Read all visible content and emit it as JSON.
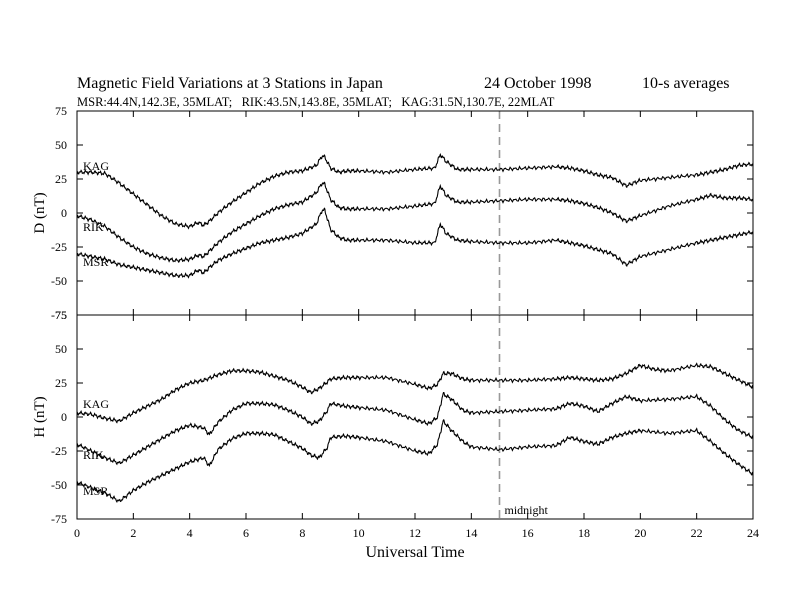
{
  "title": {
    "main": "Magnetic Field Variations at 3 Stations in Japan",
    "date": "24 October 1998",
    "averaging": "10-s averages",
    "subtitle": "MSR:44.4N,142.3E, 35MLAT;   RIK:43.5N,143.8E, 35MLAT;   KAG:31.5N,130.7E, 22MLAT"
  },
  "annotations": {
    "midnight": "midnight",
    "midnight_ut": 15
  },
  "chart_data": [
    {
      "type": "line",
      "panel": "D",
      "ylabel": "D (nT)",
      "ylim": [
        -75,
        75
      ],
      "yticks": [
        -75,
        -50,
        -25,
        0,
        25,
        50,
        75
      ],
      "xlim": [
        0,
        24
      ],
      "line_color": "#000000",
      "series": [
        {
          "name": "KAG",
          "x": [
            0,
            0.5,
            1,
            1.5,
            2,
            2.5,
            3,
            3.5,
            4,
            4.3,
            4.5,
            4.7,
            5,
            5.5,
            6,
            6.5,
            7,
            7.5,
            8,
            8.5,
            8.7,
            8.8,
            9,
            9.3,
            9.6,
            10,
            11,
            12,
            12.7,
            12.9,
            13.1,
            13.5,
            14,
            15,
            16,
            17,
            17.5,
            18,
            18.5,
            19,
            19.5,
            20,
            21,
            22,
            22.5,
            23,
            23.5,
            24
          ],
          "y": [
            30,
            30,
            29,
            22,
            14,
            6,
            -2,
            -8,
            -10,
            -7,
            -9,
            -6,
            0,
            8,
            15,
            22,
            27,
            30,
            31,
            35,
            42,
            41,
            33,
            30,
            31,
            31,
            30,
            32,
            33,
            43,
            38,
            32,
            32,
            32,
            33,
            34,
            33,
            31,
            28,
            26,
            20,
            24,
            26,
            28,
            30,
            32,
            35,
            36
          ]
        },
        {
          "name": "RIK",
          "x": [
            0,
            0.5,
            1,
            1.5,
            2,
            2.5,
            3,
            3.5,
            4,
            4.3,
            4.5,
            4.7,
            5,
            5.5,
            6,
            6.5,
            7,
            7.5,
            8,
            8.5,
            8.7,
            8.8,
            9,
            9.3,
            9.6,
            10,
            11,
            12,
            12.7,
            12.9,
            13.1,
            13.5,
            14,
            15,
            16,
            17,
            17.5,
            18,
            18.5,
            19,
            19.5,
            20,
            21,
            22,
            22.5,
            23,
            23.5,
            24
          ],
          "y": [
            -2,
            -5,
            -10,
            -18,
            -25,
            -30,
            -33,
            -35,
            -34,
            -31,
            -32,
            -28,
            -22,
            -14,
            -8,
            -2,
            3,
            6,
            8,
            15,
            22,
            21,
            10,
            4,
            3,
            3,
            3,
            5,
            7,
            20,
            13,
            8,
            8,
            9,
            10,
            10,
            9,
            7,
            4,
            0,
            -6,
            -2,
            5,
            10,
            13,
            11,
            11,
            10
          ]
        },
        {
          "name": "MSR",
          "x": [
            0,
            0.5,
            1,
            1.5,
            2,
            2.5,
            3,
            3.5,
            4,
            4.3,
            4.5,
            4.7,
            5,
            5.5,
            6,
            6.5,
            7,
            7.5,
            8,
            8.5,
            8.7,
            8.8,
            9,
            9.3,
            9.6,
            10,
            11,
            12,
            12.7,
            12.9,
            13.1,
            13.5,
            14,
            15,
            16,
            17,
            17.5,
            18,
            18.5,
            19,
            19.5,
            20,
            21,
            22,
            22.5,
            23,
            23.5,
            24
          ],
          "y": [
            -30,
            -32,
            -34,
            -38,
            -40,
            -42,
            -44,
            -46,
            -46,
            -42,
            -44,
            -40,
            -35,
            -30,
            -26,
            -22,
            -20,
            -18,
            -15,
            -8,
            2,
            2,
            -12,
            -18,
            -20,
            -20,
            -20,
            -22,
            -22,
            -8,
            -15,
            -20,
            -21,
            -22,
            -22,
            -20,
            -22,
            -24,
            -27,
            -30,
            -38,
            -32,
            -27,
            -22,
            -20,
            -18,
            -16,
            -14
          ]
        }
      ]
    },
    {
      "type": "line",
      "panel": "H",
      "ylabel": "H (nT)",
      "xlabel": "Universal Time",
      "ylim": [
        -75,
        75
      ],
      "yticks": [
        -75,
        -50,
        -25,
        0,
        25,
        50,
        75
      ],
      "xlim": [
        0,
        24
      ],
      "xticks": [
        0,
        2,
        4,
        6,
        8,
        10,
        12,
        14,
        16,
        18,
        20,
        22,
        24
      ],
      "line_color": "#000000",
      "series": [
        {
          "name": "KAG",
          "x": [
            0,
            0.5,
            1,
            1.5,
            2,
            2.5,
            3,
            3.5,
            4,
            4.5,
            5,
            5.5,
            6,
            6.5,
            7,
            7.5,
            8,
            8.3,
            8.6,
            8.9,
            9,
            9.5,
            10,
            11,
            12,
            12.5,
            12.8,
            13,
            13.3,
            13.7,
            14,
            15,
            16,
            17,
            17.5,
            18,
            18.5,
            19,
            19.5,
            20,
            20.5,
            21,
            22,
            22.5,
            23,
            23.5,
            24
          ],
          "y": [
            3,
            2,
            -1,
            -3,
            3,
            8,
            13,
            20,
            25,
            27,
            31,
            34,
            34,
            33,
            30,
            27,
            22,
            18,
            21,
            26,
            28,
            29,
            29,
            29,
            24,
            21,
            24,
            32,
            32,
            28,
            27,
            27,
            27,
            28,
            29,
            28,
            27,
            28,
            32,
            38,
            35,
            34,
            38,
            37,
            32,
            27,
            22
          ]
        },
        {
          "name": "RIK",
          "x": [
            0,
            0.5,
            1,
            1.5,
            2,
            2.5,
            3,
            3.5,
            4,
            4.5,
            4.7,
            5,
            5.5,
            6,
            6.5,
            7,
            7.5,
            8,
            8.3,
            8.6,
            8.9,
            9,
            9.5,
            10,
            11,
            12,
            12.5,
            12.8,
            13,
            13.3,
            13.7,
            14,
            15,
            16,
            17,
            17.5,
            18,
            18.5,
            19,
            19.5,
            20,
            21,
            22,
            22.5,
            23,
            23.5,
            24
          ],
          "y": [
            -20,
            -25,
            -30,
            -34,
            -28,
            -22,
            -16,
            -10,
            -6,
            -8,
            -13,
            -4,
            5,
            10,
            10,
            9,
            5,
            0,
            -5,
            -3,
            5,
            10,
            8,
            7,
            5,
            -2,
            -5,
            0,
            17,
            13,
            5,
            3,
            4,
            5,
            6,
            10,
            8,
            4,
            10,
            15,
            12,
            13,
            15,
            8,
            -2,
            -10,
            -15
          ]
        },
        {
          "name": "MSR",
          "x": [
            0,
            0.5,
            1,
            1.5,
            2,
            2.5,
            3,
            3.5,
            4,
            4.5,
            4.7,
            5,
            5.5,
            6,
            6.5,
            7,
            7.5,
            8,
            8.3,
            8.6,
            8.9,
            9,
            9.5,
            10,
            11,
            12,
            12.5,
            12.8,
            13,
            13.3,
            13.7,
            14,
            15,
            16,
            17,
            17.5,
            18,
            18.5,
            19,
            19.5,
            20,
            21,
            22,
            22.5,
            23,
            23.5,
            24
          ],
          "y": [
            -48,
            -52,
            -56,
            -62,
            -54,
            -48,
            -43,
            -38,
            -33,
            -30,
            -36,
            -24,
            -16,
            -12,
            -12,
            -13,
            -18,
            -23,
            -28,
            -30,
            -22,
            -15,
            -14,
            -15,
            -18,
            -25,
            -27,
            -20,
            -3,
            -10,
            -18,
            -22,
            -24,
            -22,
            -21,
            -15,
            -18,
            -20,
            -15,
            -12,
            -10,
            -12,
            -10,
            -18,
            -27,
            -35,
            -42
          ]
        }
      ]
    }
  ]
}
